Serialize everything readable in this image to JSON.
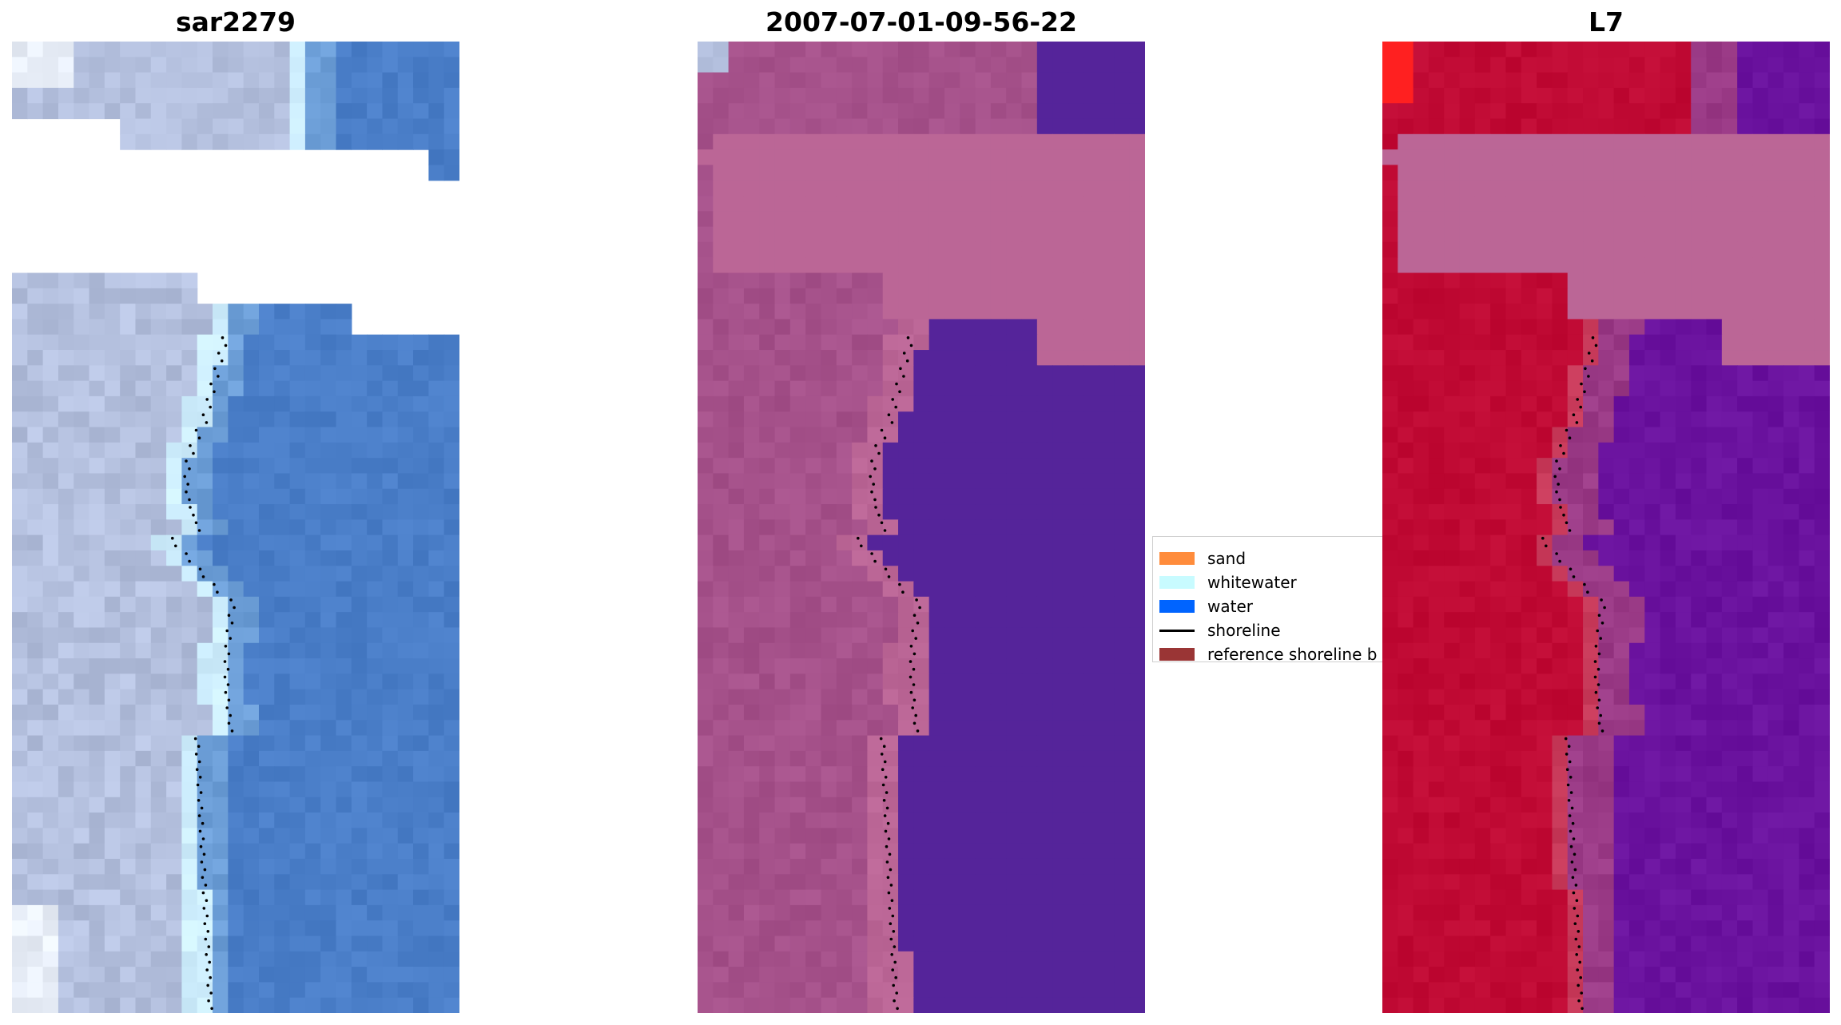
{
  "panels": [
    {
      "title": "sar2279"
    },
    {
      "title": "2007-07-01-09-56-22"
    },
    {
      "title": "L7"
    }
  ],
  "legend": {
    "items": [
      {
        "label": "sand",
        "color": "#ff8c3c",
        "type": "patch"
      },
      {
        "label": "whitewater",
        "color": "#c8fbff",
        "type": "patch"
      },
      {
        "label": "water",
        "color": "#0064ff",
        "type": "patch"
      },
      {
        "label": "shoreline",
        "color": "#000000",
        "type": "line"
      },
      {
        "label": "reference shoreline b",
        "color": "#9a3535",
        "type": "patch"
      }
    ]
  },
  "colors": {
    "rgb_sand": "#b4c0de",
    "rgb_white": "#e8eef8",
    "rgb_foam": "#cfefff",
    "rgb_water": "#4a7ec8",
    "rgb_mid": "#6d9fd8",
    "cls_land": "#a5518a",
    "cls_sand": "#bb6696",
    "cls_water": "#55249a",
    "l7_land": "#c00a34",
    "l7_bright": "#ff2020",
    "l7_water": "#6a129e",
    "l7_edge": "#9a3a86",
    "nodata": "#ffffff",
    "mask": "#bb6696",
    "shoreline": "#000000"
  }
}
